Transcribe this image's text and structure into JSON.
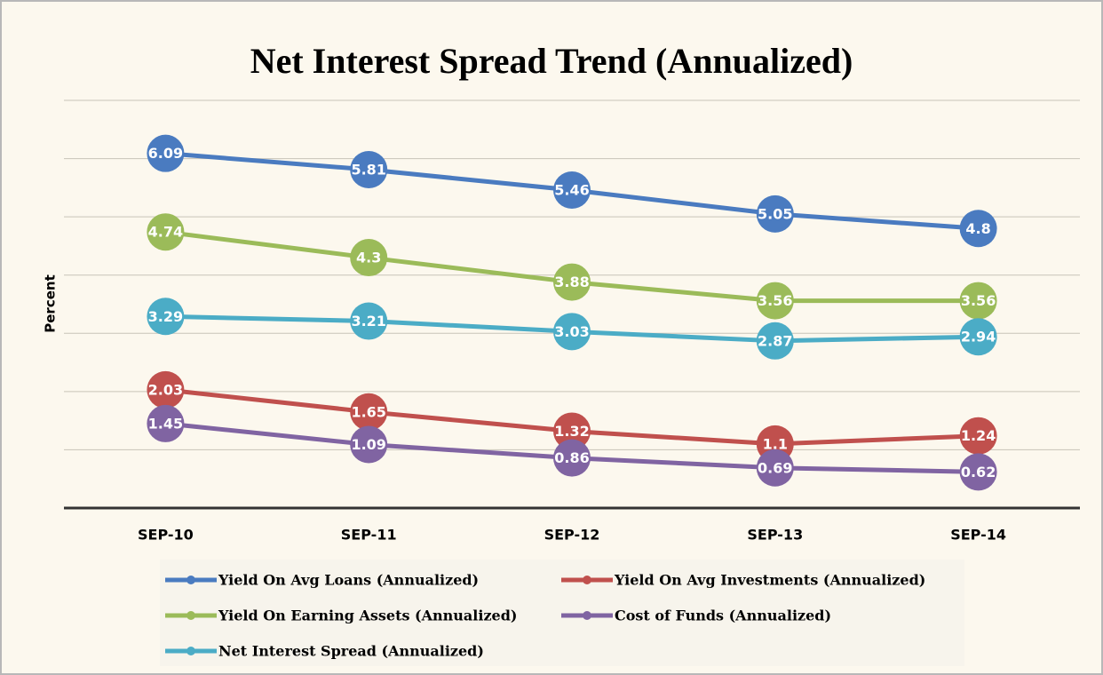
{
  "chart_data": {
    "type": "line",
    "title": "Net Interest Spread Trend (Annualized)",
    "ylabel": "Percent",
    "categories": [
      "SEP-10",
      "SEP-11",
      "SEP-12",
      "SEP-13",
      "SEP-14"
    ],
    "series": [
      {
        "name": "Yield On Avg Loans (Annualized)",
        "color": "#4a7bc0",
        "values": [
          6.09,
          5.81,
          5.46,
          5.05,
          4.8
        ]
      },
      {
        "name": "Yield On Avg Investments (Annualized)",
        "color": "#c0504d",
        "values": [
          2.03,
          1.65,
          1.32,
          1.1,
          1.24
        ]
      },
      {
        "name": "Yield On Earning Assets (Annualized)",
        "color": "#9bbb59",
        "values": [
          4.74,
          4.3,
          3.88,
          3.56,
          3.56
        ]
      },
      {
        "name": "Cost of Funds (Annualized)",
        "color": "#8064a2",
        "values": [
          1.45,
          1.09,
          0.86,
          0.69,
          0.62
        ]
      },
      {
        "name": "Net Interest Spread (Annualized)",
        "color": "#4bacc6",
        "values": [
          3.29,
          3.21,
          3.03,
          2.87,
          2.94
        ]
      }
    ],
    "ylim": [
      0,
      7
    ],
    "yticks": [
      0,
      1,
      2,
      3,
      4,
      5,
      6,
      7
    ],
    "grid": true,
    "legend": "bottom"
  }
}
